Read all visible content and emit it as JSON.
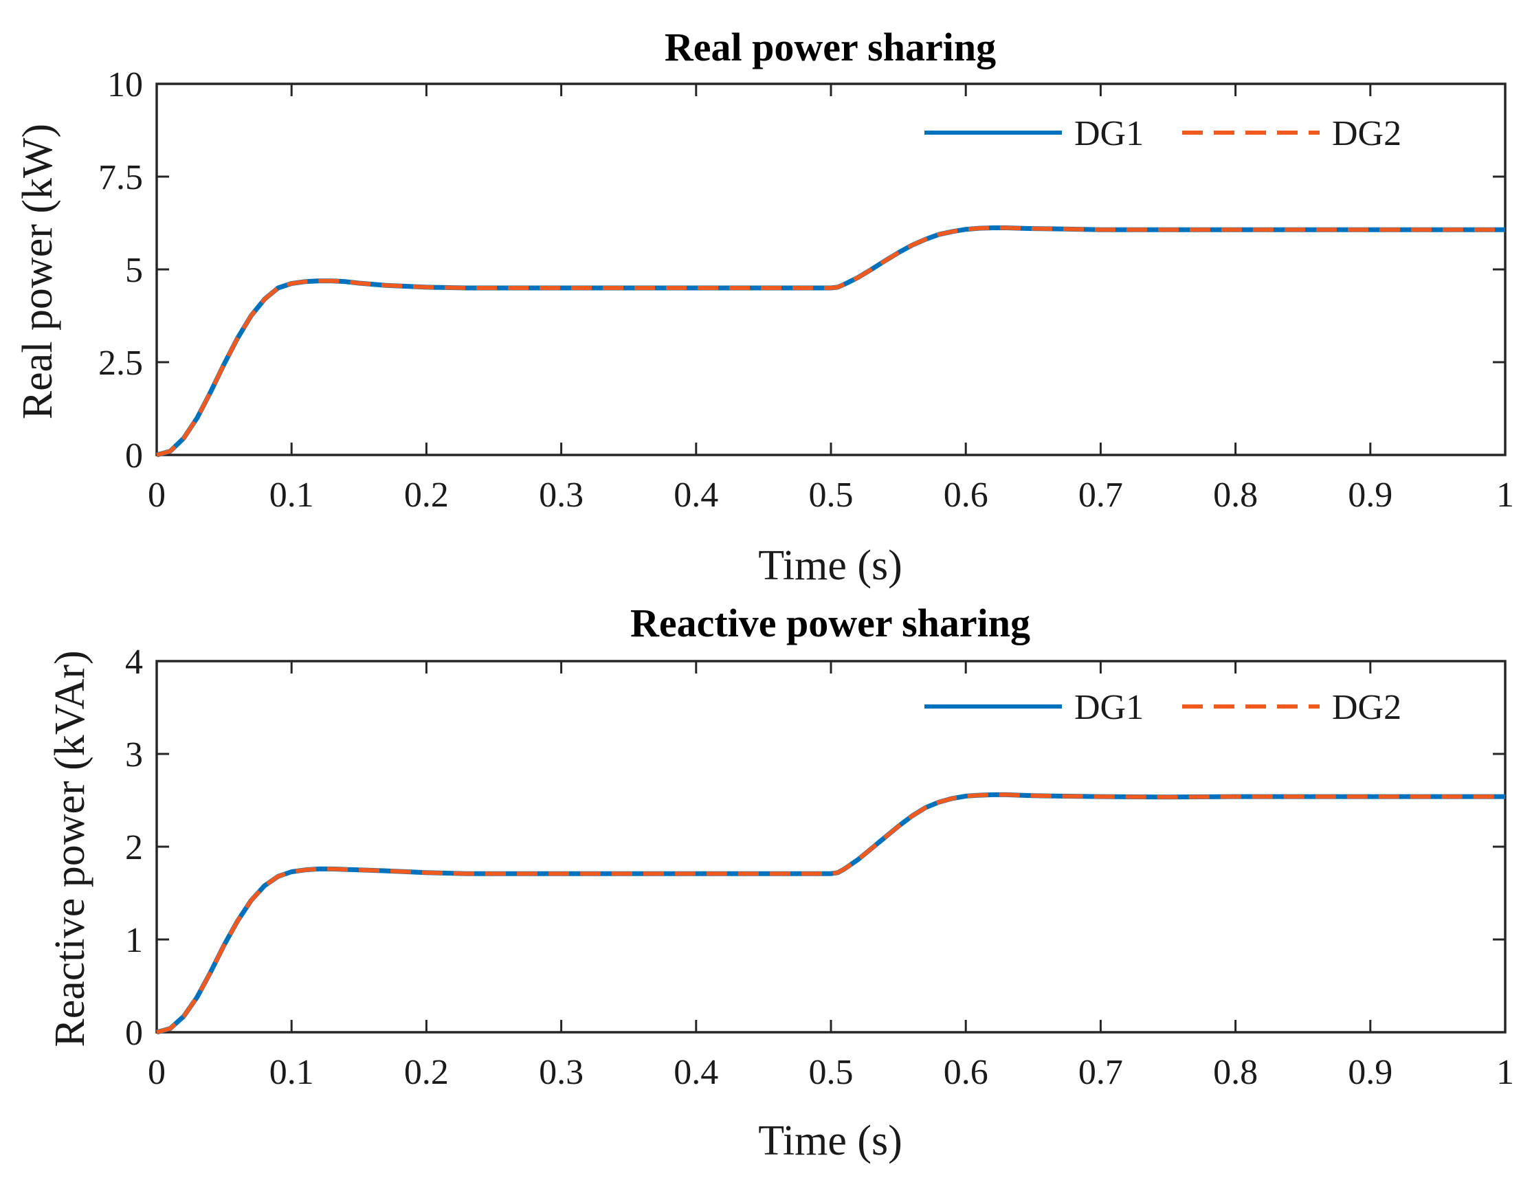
{
  "chart_data": [
    {
      "type": "line",
      "title": "Real power sharing",
      "xlabel": "Time (s)",
      "ylabel": "Real power (kW)",
      "xlim": [
        0,
        1
      ],
      "ylim": [
        0,
        10
      ],
      "xticks": [
        "0",
        "0.1",
        "0.2",
        "0.3",
        "0.4",
        "0.5",
        "0.6",
        "0.7",
        "0.8",
        "0.9",
        "1"
      ],
      "yticks": [
        "0",
        "2.5",
        "5",
        "7.5",
        "10"
      ],
      "grid": false,
      "legend_position": "top-right",
      "x": [
        0,
        0.01,
        0.02,
        0.03,
        0.04,
        0.05,
        0.06,
        0.07,
        0.08,
        0.09,
        0.1,
        0.11,
        0.12,
        0.13,
        0.14,
        0.15,
        0.17,
        0.2,
        0.23,
        0.25,
        0.3,
        0.35,
        0.4,
        0.45,
        0.5,
        0.505,
        0.51,
        0.52,
        0.53,
        0.54,
        0.55,
        0.56,
        0.57,
        0.58,
        0.59,
        0.6,
        0.61,
        0.62,
        0.63,
        0.64,
        0.65,
        0.67,
        0.7,
        0.75,
        0.8,
        0.85,
        0.9,
        0.95,
        1.0
      ],
      "series": [
        {
          "name": "DG1",
          "color": "#0072BD",
          "dash": "solid",
          "values": [
            0,
            0.1,
            0.45,
            1.0,
            1.7,
            2.45,
            3.15,
            3.75,
            4.2,
            4.5,
            4.62,
            4.67,
            4.69,
            4.69,
            4.67,
            4.63,
            4.57,
            4.52,
            4.5,
            4.5,
            4.5,
            4.5,
            4.5,
            4.5,
            4.5,
            4.52,
            4.6,
            4.78,
            5.0,
            5.23,
            5.45,
            5.65,
            5.81,
            5.94,
            6.02,
            6.08,
            6.11,
            6.12,
            6.12,
            6.11,
            6.1,
            6.09,
            6.07,
            6.07,
            6.07,
            6.07,
            6.07,
            6.07,
            6.07
          ]
        },
        {
          "name": "DG2",
          "color": "#F05A1E",
          "dash": "dashed",
          "values": [
            0,
            0.1,
            0.45,
            1.0,
            1.7,
            2.45,
            3.15,
            3.75,
            4.2,
            4.5,
            4.62,
            4.67,
            4.69,
            4.69,
            4.67,
            4.63,
            4.57,
            4.52,
            4.5,
            4.5,
            4.5,
            4.5,
            4.5,
            4.5,
            4.5,
            4.52,
            4.6,
            4.78,
            5.0,
            5.23,
            5.45,
            5.65,
            5.81,
            5.94,
            6.02,
            6.08,
            6.11,
            6.12,
            6.12,
            6.11,
            6.1,
            6.09,
            6.07,
            6.07,
            6.07,
            6.07,
            6.07,
            6.07,
            6.07
          ]
        }
      ]
    },
    {
      "type": "line",
      "title": "Reactive power sharing",
      "xlabel": "Time (s)",
      "ylabel": "Reactive power (kVAr)",
      "xlim": [
        0,
        1
      ],
      "ylim": [
        0,
        4
      ],
      "xticks": [
        "0",
        "0.1",
        "0.2",
        "0.3",
        "0.4",
        "0.5",
        "0.6",
        "0.7",
        "0.8",
        "0.9",
        "1"
      ],
      "yticks": [
        "0",
        "1",
        "2",
        "3",
        "4"
      ],
      "grid": false,
      "legend_position": "top-right",
      "x": [
        0,
        0.01,
        0.02,
        0.03,
        0.04,
        0.05,
        0.06,
        0.07,
        0.08,
        0.09,
        0.1,
        0.11,
        0.12,
        0.13,
        0.14,
        0.15,
        0.17,
        0.2,
        0.23,
        0.25,
        0.3,
        0.35,
        0.4,
        0.45,
        0.5,
        0.505,
        0.51,
        0.52,
        0.53,
        0.54,
        0.55,
        0.56,
        0.57,
        0.58,
        0.59,
        0.6,
        0.61,
        0.62,
        0.63,
        0.64,
        0.65,
        0.67,
        0.7,
        0.75,
        0.8,
        0.85,
        0.9,
        0.95,
        1.0
      ],
      "series": [
        {
          "name": "DG1",
          "color": "#0072BD",
          "dash": "solid",
          "values": [
            0,
            0.04,
            0.17,
            0.38,
            0.65,
            0.94,
            1.2,
            1.42,
            1.58,
            1.68,
            1.73,
            1.75,
            1.76,
            1.76,
            1.755,
            1.75,
            1.74,
            1.72,
            1.71,
            1.71,
            1.71,
            1.71,
            1.71,
            1.71,
            1.71,
            1.72,
            1.76,
            1.86,
            1.98,
            2.1,
            2.22,
            2.33,
            2.42,
            2.48,
            2.52,
            2.545,
            2.555,
            2.56,
            2.56,
            2.555,
            2.55,
            2.545,
            2.54,
            2.535,
            2.54,
            2.54,
            2.54,
            2.54,
            2.54
          ]
        },
        {
          "name": "DG2",
          "color": "#F05A1E",
          "dash": "dashed",
          "values": [
            0,
            0.04,
            0.17,
            0.38,
            0.65,
            0.94,
            1.2,
            1.42,
            1.58,
            1.68,
            1.73,
            1.75,
            1.76,
            1.76,
            1.755,
            1.75,
            1.74,
            1.72,
            1.71,
            1.71,
            1.71,
            1.71,
            1.71,
            1.71,
            1.71,
            1.72,
            1.76,
            1.86,
            1.98,
            2.1,
            2.22,
            2.33,
            2.42,
            2.48,
            2.52,
            2.545,
            2.555,
            2.56,
            2.56,
            2.555,
            2.55,
            2.545,
            2.54,
            2.535,
            2.54,
            2.54,
            2.54,
            2.54,
            2.54
          ]
        }
      ]
    }
  ]
}
